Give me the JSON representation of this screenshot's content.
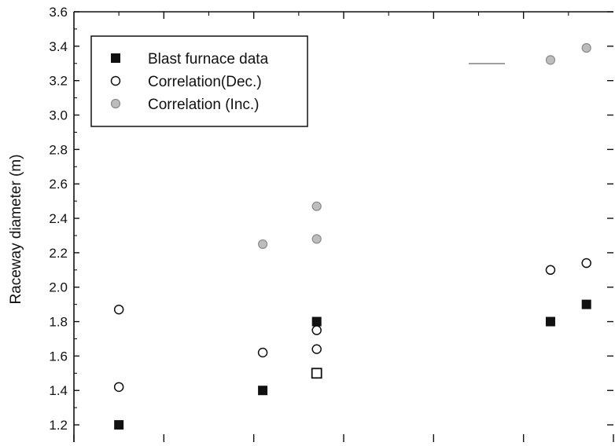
{
  "chart_data": {
    "type": "scatter",
    "title": "",
    "xlabel": "",
    "ylabel": "Raceway diameter (m)",
    "ylim": [
      1.1,
      3.6
    ],
    "xlim": [
      0,
      6
    ],
    "yticks": [
      "1.2",
      "1.4",
      "1.6",
      "1.8",
      "2.0",
      "2.2",
      "2.4",
      "2.6",
      "2.8",
      "3.0",
      "3.2",
      "3.4",
      "3.6"
    ],
    "grid": false,
    "legend_position": "top-left",
    "colors": {
      "blast_furnace": "#111111",
      "correlation_dec": "#111111",
      "correlation_inc": "#8a8a8a"
    },
    "series": [
      {
        "name": "Blast furnace data",
        "marker": "square-filled",
        "points": [
          {
            "x": 0.5,
            "y": 1.2
          },
          {
            "x": 2.1,
            "y": 1.4
          },
          {
            "x": 2.7,
            "y": 1.8
          },
          {
            "x": 5.3,
            "y": 1.8
          },
          {
            "x": 5.7,
            "y": 1.9
          }
        ]
      },
      {
        "name": "Correlation(Dec.)",
        "marker": "circle-open",
        "points": [
          {
            "x": 0.5,
            "y": 1.87
          },
          {
            "x": 0.5,
            "y": 1.42
          },
          {
            "x": 2.1,
            "y": 1.62
          },
          {
            "x": 2.7,
            "y": 1.75
          },
          {
            "x": 2.7,
            "y": 1.64
          },
          {
            "x": 5.3,
            "y": 2.1
          },
          {
            "x": 5.7,
            "y": 2.14
          }
        ]
      },
      {
        "name": "Correlation (Inc.)",
        "marker": "circle-gray",
        "points": [
          {
            "x": 2.1,
            "y": 2.25
          },
          {
            "x": 2.7,
            "y": 2.47
          },
          {
            "x": 2.7,
            "y": 2.28
          },
          {
            "x": 5.3,
            "y": 3.32
          },
          {
            "x": 5.7,
            "y": 3.39
          }
        ]
      }
    ],
    "extra_points": [
      {
        "marker": "square-open",
        "x": 2.7,
        "y": 1.5
      }
    ]
  }
}
